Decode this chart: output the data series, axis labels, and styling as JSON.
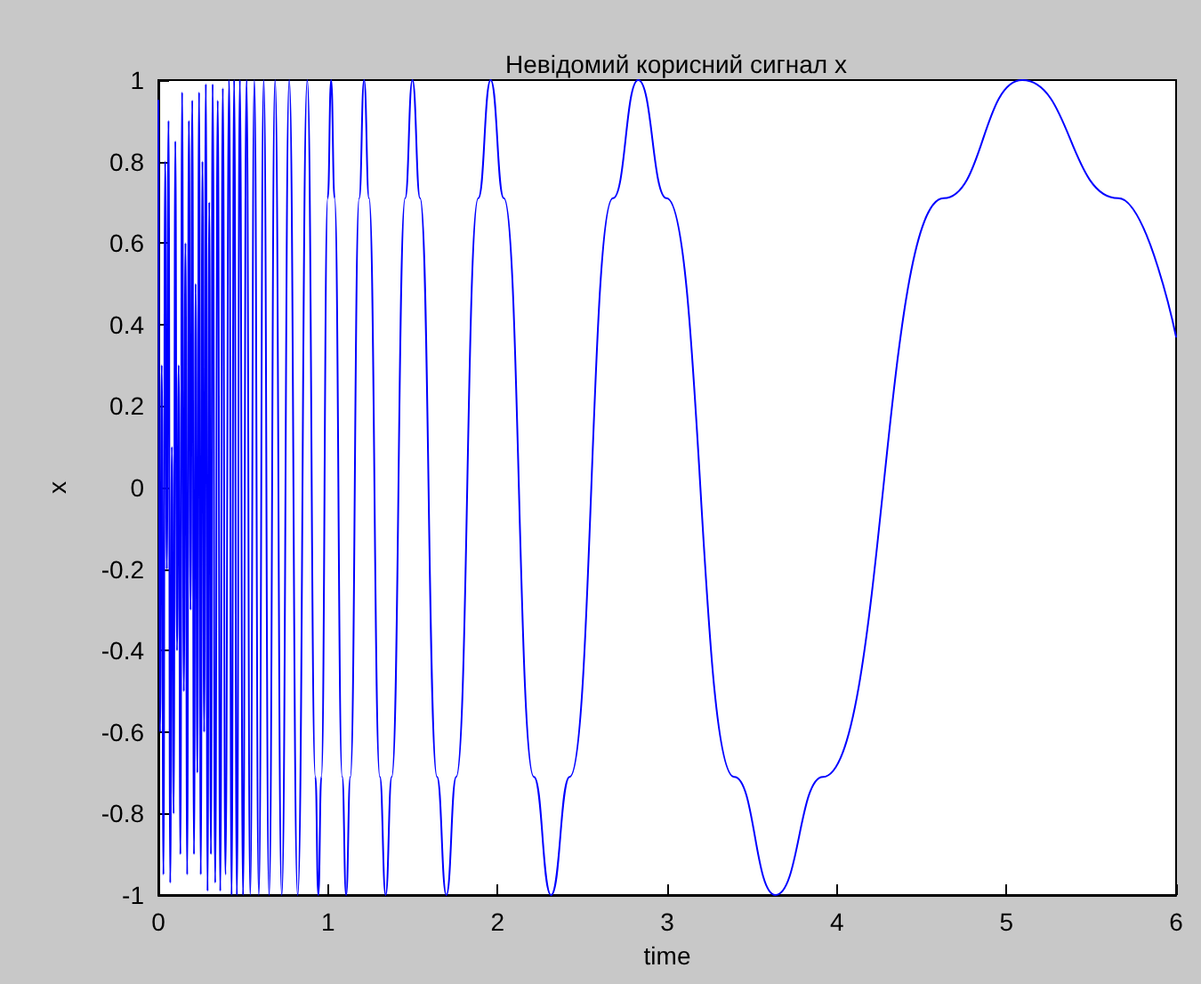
{
  "chart_data": {
    "type": "line",
    "title": "Невідомий корисний сигнал x",
    "xlabel": "time",
    "ylabel": "x",
    "x": [
      0,
      0.01,
      0.02,
      0.03,
      0.04,
      0.05,
      0.06,
      0.07,
      0.08,
      0.09,
      0.1,
      0.11,
      0.12,
      0.13,
      0.14,
      0.15,
      0.16,
      0.17,
      0.18,
      0.19,
      0.2,
      0.21,
      0.22,
      0.23,
      0.24,
      0.25,
      0.26,
      0.27,
      0.28,
      0.29,
      0.3,
      0.31,
      0.32,
      0.335,
      0.35,
      0.365,
      0.38,
      0.395,
      0.4175,
      0.4316,
      0.4467,
      0.463,
      0.4805,
      0.4993,
      0.5197,
      0.5418,
      0.5659,
      0.5922,
      0.6211,
      0.653,
      0.6882,
      0.7275,
      0.7716,
      0.8215,
      0.8781,
      0.926,
      0.9431,
      0.9609,
      0.9986,
      1.0186,
      1.039,
      1.084,
      1.107,
      1.132,
      1.184,
      1.213,
      1.242,
      1.306,
      1.34,
      1.376,
      1.455,
      1.498,
      1.543,
      1.643,
      1.698,
      1.756,
      1.886,
      1.959,
      2.037,
      2.214,
      2.315,
      2.425,
      2.68,
      2.829,
      2.996,
      3.395,
      3.638,
      3.918,
      4.63,
      5.093,
      5.659,
      6
    ],
    "series": [
      {
        "color": "#0000ff",
        "values": [
          0.95,
          -0.6,
          0.3,
          -0.95,
          0.8,
          -0.2,
          0.9,
          -0.97,
          0.1,
          -0.8,
          0.85,
          -0.4,
          0.3,
          -0.9,
          0.97,
          -0.5,
          0.6,
          -0.95,
          0.9,
          -0.3,
          0.95,
          -0.9,
          0.5,
          -0.7,
          0.97,
          -0.95,
          0.8,
          -0.6,
          0.99,
          -0.99,
          0.7,
          -0.9,
          0.99,
          -0.97,
          0.95,
          -0.99,
          0.98,
          -0.95,
          1,
          -1,
          1,
          -1,
          1,
          -1,
          1,
          -1,
          1,
          -1,
          1,
          -1,
          1,
          -1,
          1,
          -1,
          1,
          -0.71,
          -1,
          -0.71,
          0.71,
          1,
          0.71,
          -0.71,
          -1,
          -0.71,
          0.71,
          1,
          0.71,
          -0.71,
          -1,
          -0.71,
          0.71,
          1,
          0.71,
          -0.71,
          -1,
          -0.71,
          0.71,
          1,
          0.71,
          -0.71,
          -1,
          -0.71,
          0.71,
          1,
          0.71,
          -0.71,
          -1,
          -0.71,
          0.71,
          1,
          0.71,
          0.37
        ]
      }
    ],
    "xlim": [
      0,
      6
    ],
    "xticks": [
      0,
      1,
      2,
      3,
      4,
      5,
      6
    ],
    "ylim": [
      -1,
      1
    ],
    "yticks": [
      -1,
      -0.8,
      -0.6,
      -0.4,
      -0.2,
      0,
      0.2,
      0.4,
      0.6,
      0.8,
      1
    ],
    "grid": false,
    "marker": "none",
    "line_style": "solid"
  }
}
